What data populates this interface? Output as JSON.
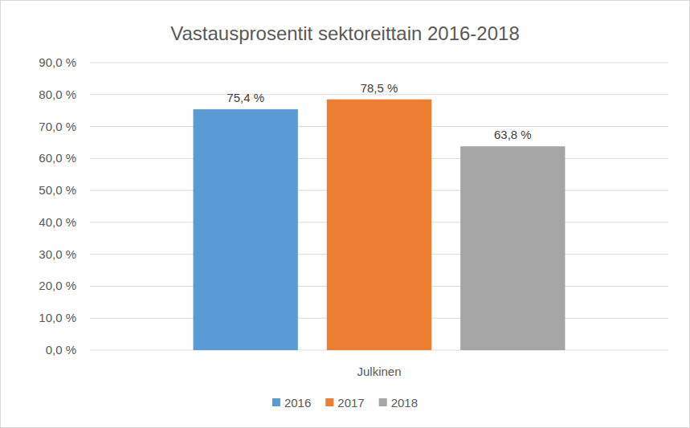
{
  "chart_data": {
    "type": "bar",
    "title": "Vastausprosentit sektoreittain 2016-2018",
    "categories": [
      "Julkinen"
    ],
    "series": [
      {
        "name": "2016",
        "color": "#5b9bd5",
        "values": [
          75.4
        ],
        "value_labels": [
          "75,4 %"
        ]
      },
      {
        "name": "2017",
        "color": "#ed7d31",
        "values": [
          78.5
        ],
        "value_labels": [
          "78,5 %"
        ]
      },
      {
        "name": "2018",
        "color": "#a5a5a5",
        "values": [
          63.8
        ],
        "value_labels": [
          "63,8 %"
        ]
      }
    ],
    "ylim": [
      0,
      90
    ],
    "yticks": [
      {
        "value": 0,
        "label": "0,0 %"
      },
      {
        "value": 10,
        "label": "10,0 %"
      },
      {
        "value": 20,
        "label": "20,0 %"
      },
      {
        "value": 30,
        "label": "30,0 %"
      },
      {
        "value": 40,
        "label": "40,0 %"
      },
      {
        "value": 50,
        "label": "50,0 %"
      },
      {
        "value": 60,
        "label": "60,0 %"
      },
      {
        "value": 70,
        "label": "70,0 %"
      },
      {
        "value": 80,
        "label": "80,0 %"
      },
      {
        "value": 90,
        "label": "90,0 %"
      }
    ],
    "grid": true,
    "legend": "bottom",
    "data_labels": true
  }
}
